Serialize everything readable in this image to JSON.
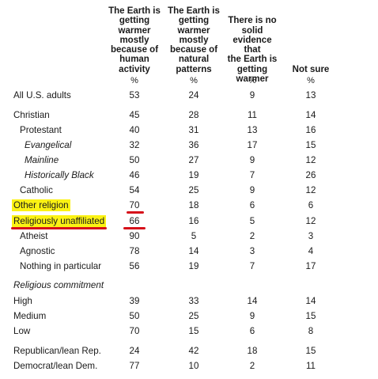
{
  "headers": [
    [
      "The Earth is",
      "getting",
      "warmer",
      "mostly",
      "because of",
      "human",
      "activity"
    ],
    [
      "The Earth is",
      "getting",
      "warmer",
      "mostly",
      "because of",
      "natural",
      "patterns"
    ],
    [
      "There is no",
      "solid",
      "evidence that",
      "the Earth is",
      "getting",
      "warmer"
    ],
    [
      "Not sure"
    ]
  ],
  "pct_symbol": "%",
  "rows": {
    "all": {
      "label": "All U.S. adults",
      "values": [
        "53",
        "24",
        "9",
        "13"
      ]
    },
    "christian": {
      "label": "Christian",
      "values": [
        "45",
        "28",
        "11",
        "14"
      ]
    },
    "protestant": {
      "label": "Protestant",
      "values": [
        "40",
        "31",
        "13",
        "16"
      ]
    },
    "evangelical": {
      "label": "Evangelical",
      "values": [
        "32",
        "36",
        "17",
        "15"
      ]
    },
    "mainline": {
      "label": "Mainline",
      "values": [
        "50",
        "27",
        "9",
        "12"
      ]
    },
    "historically_black": {
      "label": "Historically Black",
      "values": [
        "46",
        "19",
        "7",
        "26"
      ]
    },
    "catholic": {
      "label": "Catholic",
      "values": [
        "54",
        "25",
        "9",
        "12"
      ]
    },
    "other_religion": {
      "label": "Other religion",
      "values": [
        "70",
        "18",
        "6",
        "6"
      ]
    },
    "unaffiliated": {
      "label": "Religiously unaffiliated",
      "values": [
        "66",
        "16",
        "5",
        "12"
      ]
    },
    "atheist": {
      "label": "Atheist",
      "values": [
        "90",
        "5",
        "2",
        "3"
      ]
    },
    "agnostic": {
      "label": "Agnostic",
      "values": [
        "78",
        "14",
        "3",
        "4"
      ]
    },
    "nothing": {
      "label": "Nothing in particular",
      "values": [
        "56",
        "19",
        "7",
        "17"
      ]
    },
    "commitment_heading": {
      "label": "Religious commitment"
    },
    "high": {
      "label": "High",
      "values": [
        "39",
        "33",
        "14",
        "14"
      ]
    },
    "medium": {
      "label": "Medium",
      "values": [
        "50",
        "25",
        "9",
        "15"
      ]
    },
    "low": {
      "label": "Low",
      "values": [
        "70",
        "15",
        "6",
        "8"
      ]
    },
    "republican": {
      "label": "Republican/lean Rep.",
      "values": [
        "24",
        "42",
        "18",
        "15"
      ]
    },
    "democrat": {
      "label": "Democrat/lean Dem.",
      "values": [
        "77",
        "10",
        "2",
        "11"
      ]
    }
  },
  "colors": {
    "highlight": "#fbf214",
    "underline": "#d6111a"
  }
}
